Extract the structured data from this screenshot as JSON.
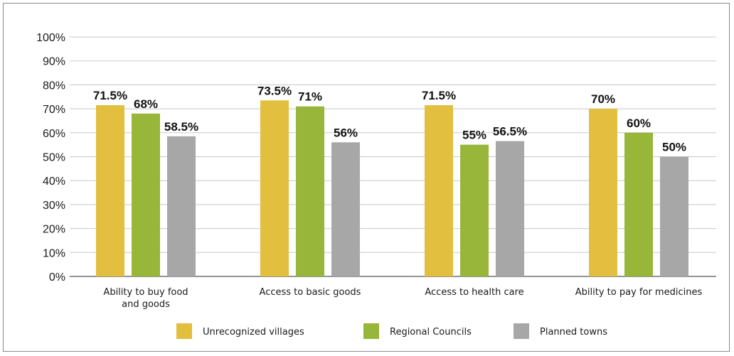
{
  "chart_data": {
    "type": "bar",
    "categories": [
      [
        "Ability to buy food",
        "and goods"
      ],
      [
        "Access to basic goods"
      ],
      [
        "Access to health care"
      ],
      [
        "Ability to pay for medicines"
      ]
    ],
    "series": [
      {
        "name": "Unrecognized villages",
        "color": "#E2BF3E",
        "values": [
          71.5,
          73.5,
          71.5,
          70
        ],
        "labels": [
          "71.5%",
          "73.5%",
          "71.5%",
          "70%"
        ]
      },
      {
        "name": "Regional Councils",
        "color": "#97B63A",
        "values": [
          68,
          71,
          55,
          60
        ],
        "labels": [
          "68%",
          "71%",
          "55%",
          "60%"
        ]
      },
      {
        "name": "Planned towns",
        "color": "#A7A7A7",
        "values": [
          58.5,
          56,
          56.5,
          50
        ],
        "labels": [
          "58.5%",
          "56%",
          "56.5%",
          "50%"
        ]
      }
    ],
    "ylim": [
      0,
      100
    ],
    "yticks": [
      "0%",
      "10%",
      "20%",
      "30%",
      "40%",
      "50%",
      "60%",
      "70%",
      "80%",
      "90%",
      "100%"
    ],
    "grid": true,
    "legend_position": "bottom"
  }
}
